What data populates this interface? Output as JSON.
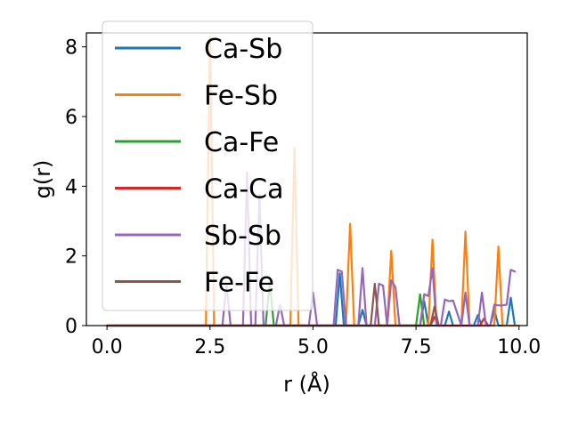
{
  "chart_data": {
    "type": "line",
    "xlabel": "r (Å)",
    "ylabel": "g(r)",
    "xlim": [
      -0.5,
      10.2
    ],
    "ylim": [
      0,
      8.4
    ],
    "xticks": [
      0.0,
      2.5,
      5.0,
      7.5,
      10.0
    ],
    "xtick_labels": [
      "0.0",
      "2.5",
      "5.0",
      "7.5",
      "10.0"
    ],
    "yticks": [
      0,
      2,
      4,
      6,
      8
    ],
    "ytick_labels": [
      "0",
      "2",
      "4",
      "6",
      "8"
    ],
    "grid": false,
    "legend_position": "upper-left",
    "series": [
      {
        "name": "Ca-Sb",
        "color": "#1f77b4",
        "x": [
          0,
          5.55,
          5.65,
          5.75,
          6.1,
          6.2,
          6.3,
          7.6,
          7.7,
          7.8,
          8.2,
          8.3,
          8.4,
          8.9,
          9.0,
          9.1,
          9.3,
          9.4,
          9.5,
          9.7,
          9.8,
          9.9
        ],
        "y": [
          0,
          0,
          1.5,
          0,
          0,
          0.45,
          0,
          0,
          0.7,
          0,
          0,
          0.4,
          0,
          0,
          0.3,
          0,
          0,
          0.45,
          0,
          0,
          0.8,
          0
        ]
      },
      {
        "name": "Fe-Sb",
        "color": "#ff7f0e",
        "x": [
          0,
          2.4,
          2.5,
          2.6,
          4.45,
          4.55,
          4.65,
          5.8,
          5.9,
          6.0,
          6.8,
          6.9,
          7.0,
          7.8,
          7.9,
          8.0,
          8.6,
          8.7,
          8.8,
          9.4,
          9.5,
          9.6,
          10.0
        ],
        "y": [
          0,
          0,
          8.3,
          0,
          0,
          5.1,
          0,
          0,
          2.92,
          0,
          0,
          2.15,
          0,
          0,
          2.47,
          0,
          0,
          2.7,
          0,
          0,
          2.27,
          0,
          0
        ]
      },
      {
        "name": "Ca-Fe",
        "color": "#2ca02c",
        "x": [
          0,
          3.85,
          3.95,
          4.05,
          7.5,
          7.6,
          7.7
        ],
        "y": [
          0,
          0,
          1.25,
          0,
          0,
          0.9,
          0
        ]
      },
      {
        "name": "Ca-Ca",
        "color": "#d62728",
        "x": [
          0,
          7.85,
          7.95,
          8.05,
          9.05,
          9.15,
          9.25
        ],
        "y": [
          0,
          0,
          0.25,
          0,
          0,
          0.2,
          0
        ]
      },
      {
        "name": "Sb-Sb",
        "color": "#9467bd",
        "x": [
          0,
          2.8,
          2.9,
          3.0,
          3.3,
          3.4,
          3.5,
          3.6,
          3.7,
          3.8,
          4.1,
          4.2,
          4.3,
          4.9,
          5.0,
          5.1,
          5.5,
          5.6,
          5.7,
          5.8,
          6.1,
          6.2,
          6.3,
          6.5,
          6.6,
          6.7,
          6.8,
          6.9,
          7.0,
          7.1,
          7.6,
          7.7,
          7.8,
          7.9,
          8.0,
          8.1,
          8.2,
          8.3,
          8.4,
          8.6,
          8.7,
          8.8,
          9.0,
          9.1,
          9.2,
          9.3,
          9.4,
          9.5,
          9.6,
          9.7,
          9.8,
          9.9
        ],
        "y": [
          0,
          0,
          1.2,
          0,
          0,
          4.4,
          0,
          0,
          3.75,
          0,
          0,
          0.6,
          0,
          0,
          0.95,
          0,
          0,
          1.6,
          1.55,
          0,
          0,
          1.65,
          0,
          0,
          1.2,
          1.15,
          0,
          1.3,
          1.1,
          0,
          0,
          0.9,
          0.85,
          1.65,
          0,
          0,
          0.75,
          0.7,
          0.72,
          0,
          0.95,
          0,
          0,
          0.95,
          0,
          0,
          0.6,
          0.58,
          0.58,
          0.6,
          1.6,
          1.55
        ]
      },
      {
        "name": "Fe-Fe",
        "color": "#8c564b",
        "x": [
          0,
          6.4,
          6.5,
          6.6,
          7.85,
          7.95,
          8.05
        ],
        "y": [
          0,
          0,
          1.2,
          0,
          0,
          0.55,
          0
        ]
      }
    ]
  }
}
